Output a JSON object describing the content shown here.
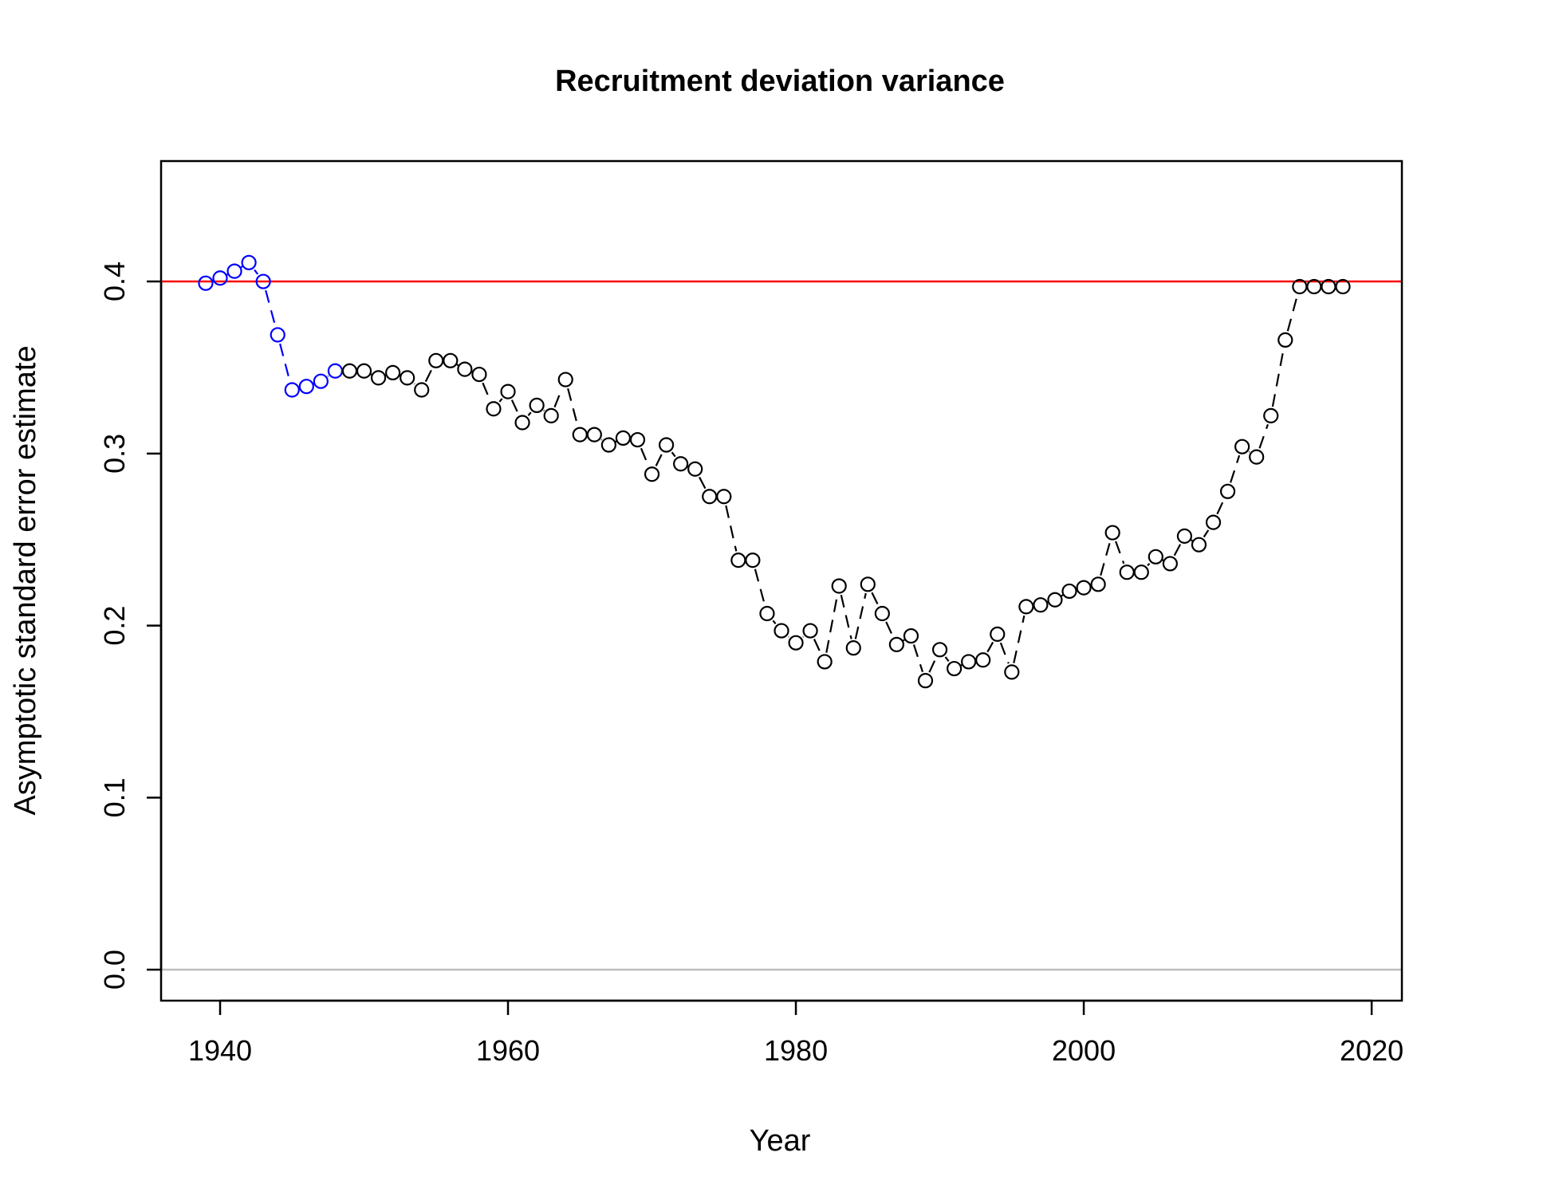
{
  "chart_data": {
    "type": "scatter",
    "title": "Recruitment deviation variance",
    "xlabel": "Year",
    "ylabel": "Asymptotic standard error estimate",
    "xlim": [
      1935.9,
      2022.1
    ],
    "ylim": [
      -0.018,
      0.47
    ],
    "xticks": [
      1940,
      1960,
      1980,
      2000,
      2020
    ],
    "yticks": [
      0.0,
      0.1,
      0.2,
      0.3,
      0.4
    ],
    "xtick_labels": [
      "1940",
      "1960",
      "1980",
      "2000",
      "2020"
    ],
    "ytick_labels": [
      "0.0",
      "0.1",
      "0.2",
      "0.3",
      "0.4"
    ],
    "grid": false,
    "reference_lines": [
      {
        "y": 0.4,
        "color": "#ff0000"
      },
      {
        "y": 0.0,
        "color": "#bebebe"
      }
    ],
    "series": [
      {
        "color": "#0000ff",
        "line_style": "dashed",
        "x": [
          1939,
          1940,
          1941,
          1942,
          1943,
          1944,
          1945,
          1946,
          1947,
          1948
        ],
        "y": [
          0.399,
          0.402,
          0.406,
          0.411,
          0.4,
          0.369,
          0.337,
          0.339,
          0.342,
          0.348
        ]
      },
      {
        "color": "#000000",
        "line_style": "dashed",
        "x": [
          1949,
          1950,
          1951,
          1952,
          1953,
          1954,
          1955,
          1956,
          1957,
          1958,
          1959,
          1960,
          1961,
          1962,
          1963,
          1964,
          1965,
          1966,
          1967,
          1968,
          1969,
          1970,
          1971,
          1972,
          1973,
          1974,
          1975,
          1976,
          1977,
          1978,
          1979,
          1980,
          1981,
          1982,
          1983,
          1984,
          1985,
          1986,
          1987,
          1988,
          1989,
          1990,
          1991,
          1992,
          1993,
          1994,
          1995,
          1996,
          1997,
          1998,
          1999,
          2000,
          2001,
          2002,
          2003,
          2004,
          2005,
          2006,
          2007,
          2008,
          2009,
          2010,
          2011,
          2012,
          2013,
          2014,
          2015,
          2016,
          2017,
          2018
        ],
        "y": [
          0.348,
          0.348,
          0.344,
          0.347,
          0.344,
          0.337,
          0.354,
          0.354,
          0.349,
          0.346,
          0.326,
          0.336,
          0.318,
          0.328,
          0.322,
          0.343,
          0.311,
          0.311,
          0.305,
          0.309,
          0.308,
          0.288,
          0.305,
          0.294,
          0.291,
          0.275,
          0.275,
          0.238,
          0.238,
          0.207,
          0.197,
          0.19,
          0.197,
          0.179,
          0.223,
          0.187,
          0.224,
          0.207,
          0.189,
          0.194,
          0.168,
          0.186,
          0.175,
          0.179,
          0.18,
          0.195,
          0.173,
          0.211,
          0.212,
          0.215,
          0.22,
          0.222,
          0.224,
          0.254,
          0.231,
          0.231,
          0.24,
          0.236,
          0.252,
          0.247,
          0.26,
          0.278,
          0.304,
          0.298,
          0.322,
          0.366,
          0.397,
          0.397,
          0.397,
          0.397
        ]
      }
    ]
  }
}
